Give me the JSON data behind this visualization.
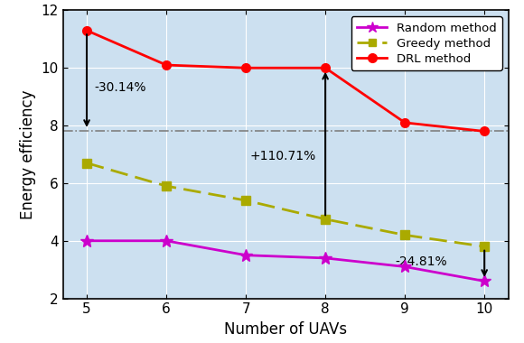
{
  "x": [
    5,
    6,
    7,
    8,
    9,
    10
  ],
  "random": [
    4.0,
    4.0,
    3.5,
    3.4,
    3.1,
    2.6
  ],
  "greedy": [
    6.7,
    5.9,
    5.4,
    4.75,
    4.2,
    3.8
  ],
  "drl": [
    11.3,
    10.1,
    10.0,
    10.0,
    8.1,
    7.8
  ],
  "random_color": "#cc00cc",
  "greedy_color": "#aaaa00",
  "drl_color": "#ff0000",
  "bg_color": "#cce0f0",
  "xlabel": "Number of UAVs",
  "ylabel": "Energy efficiency",
  "ylim": [
    2,
    12
  ],
  "xlim": [
    4.7,
    10.3
  ],
  "yticks": [
    2,
    4,
    6,
    8,
    10,
    12
  ],
  "xticks": [
    5,
    6,
    7,
    8,
    9,
    10
  ],
  "hline_y": 7.8,
  "annot_neg30": "-30.14%",
  "annot_pos110": "+110.71%",
  "annot_neg24": "-24.81%",
  "legend_labels": [
    "Random method",
    "Greedy method",
    "DRL method"
  ]
}
